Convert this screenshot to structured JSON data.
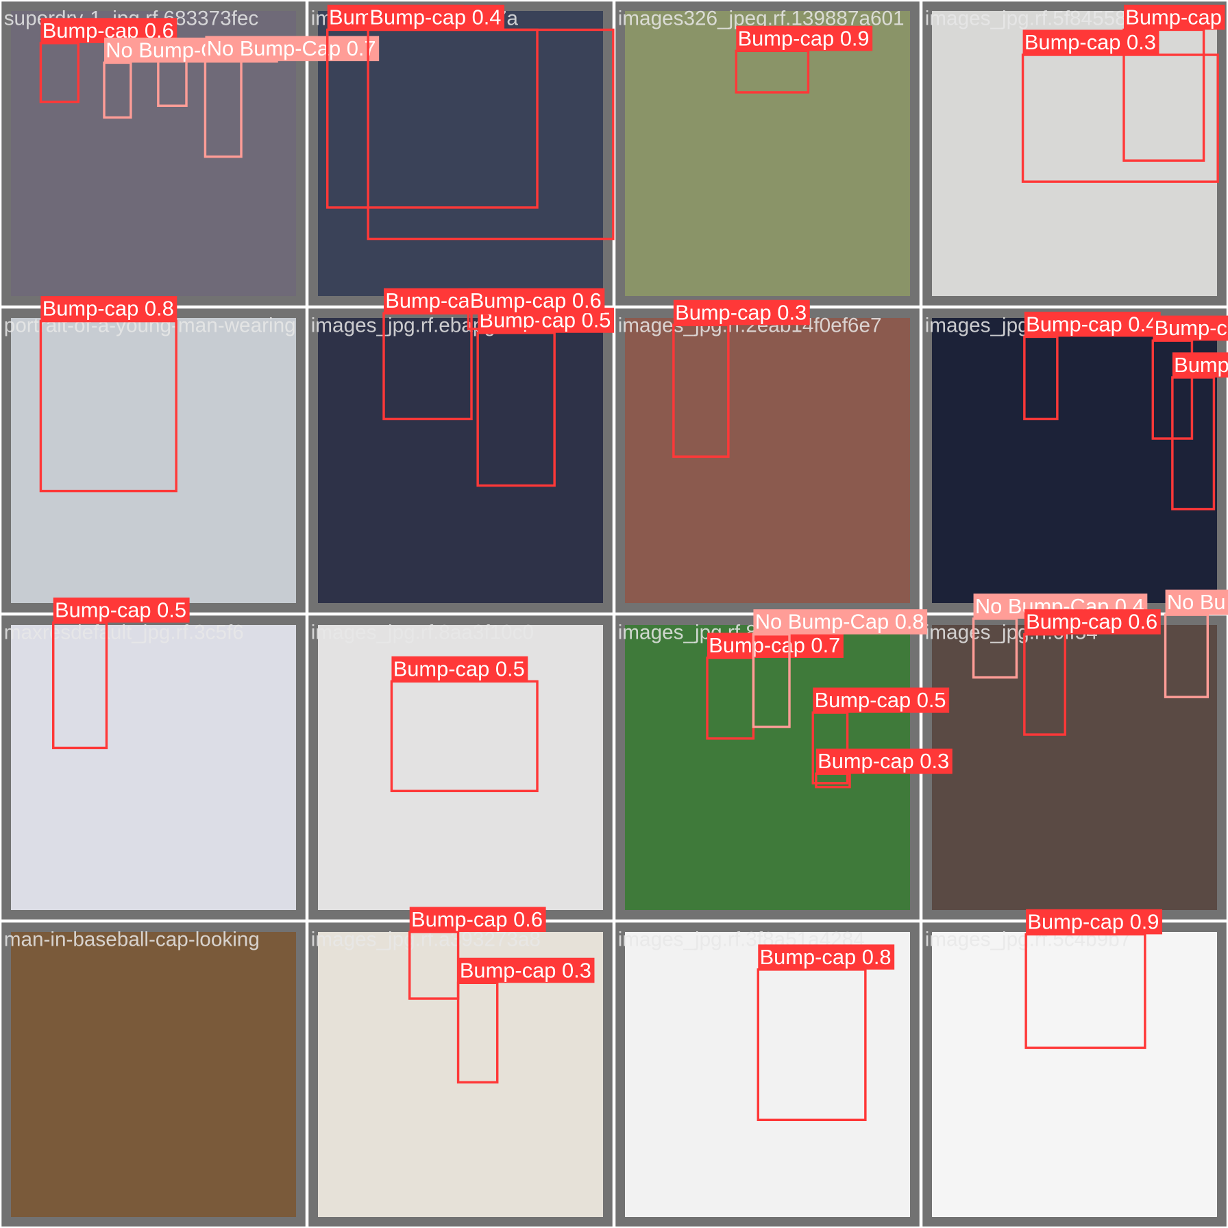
{
  "tiles": [
    {
      "filename": "superdry-1_jpg.rf.683373fec",
      "detections": [
        {
          "label": "Bump-cap 0.6"
        },
        {
          "label": "No Bump-Cap 0.3"
        },
        {
          "label": "No Bump-Cap 0.7"
        }
      ]
    },
    {
      "filename": "images_jpg.rf.2967d7a",
      "detections": [
        {
          "label": "Bump-cap 0.3"
        },
        {
          "label": "Bump-cap 0.4"
        }
      ]
    },
    {
      "filename": "images326_jpeg.rf.139887a601",
      "detections": [
        {
          "label": "Bump-cap 0.9"
        }
      ]
    },
    {
      "filename": "images_jpg.rf.5f84558455a3",
      "detections": [
        {
          "label": "Bump-cap 0.3"
        },
        {
          "label": "Bump-cap"
        }
      ]
    },
    {
      "filename": "portrait-of-a-young-man-wearing",
      "detections": [
        {
          "label": "Bump-cap 0.8"
        }
      ]
    },
    {
      "filename": "images_jpg.rf.ebapg",
      "detections": [
        {
          "label": "Bump-cap 0.3"
        },
        {
          "label": "Bump-cap 0.5"
        },
        {
          "label": "Bump-cap 0.6"
        }
      ]
    },
    {
      "filename": "images_jpg.rf.2eab14f0ef6e7",
      "detections": [
        {
          "label": "Bump-cap 0.3"
        }
      ]
    },
    {
      "filename": "images_jpg.rf.6ff",
      "detections": [
        {
          "label": "Bump-cap 0.4"
        },
        {
          "label": "Bump-c"
        },
        {
          "label": "Bump"
        }
      ]
    },
    {
      "filename": "maxresdefault_jpg.rf.3c5f6",
      "detections": [
        {
          "label": "Bump-cap 0.5"
        }
      ]
    },
    {
      "filename": "images_jpg.rf.8aa3f10c0",
      "detections": [
        {
          "label": "Bump-cap 0.5"
        }
      ]
    },
    {
      "filename": "images_jpg.rf.8991877",
      "detections": [
        {
          "label": "Bump-cap 0.7"
        },
        {
          "label": "No Bump-Cap 0.8"
        },
        {
          "label": "Bump-cap 0.5"
        },
        {
          "label": "Bump-cap 0.3"
        }
      ]
    },
    {
      "filename": "images_jpg.rf.6ff54",
      "detections": [
        {
          "label": "No Bump-Cap 0.4"
        },
        {
          "label": "Bump-cap 0.6"
        },
        {
          "label": "No Bu"
        }
      ]
    },
    {
      "filename": "man-in-baseball-cap-looking",
      "detections": []
    },
    {
      "filename": "images_jpg.rf.a393273a8",
      "detections": [
        {
          "label": "Bump-cap 0.6"
        },
        {
          "label": "Bump-cap 0.3"
        }
      ]
    },
    {
      "filename": "images_jpg.rf.3f8a51a4284",
      "detections": [
        {
          "label": "Bump-cap 0.8"
        }
      ]
    },
    {
      "filename": "images_jpg.rf.5c4b9b7",
      "detections": [
        {
          "label": "Bump-cap 0.9"
        }
      ]
    }
  ]
}
